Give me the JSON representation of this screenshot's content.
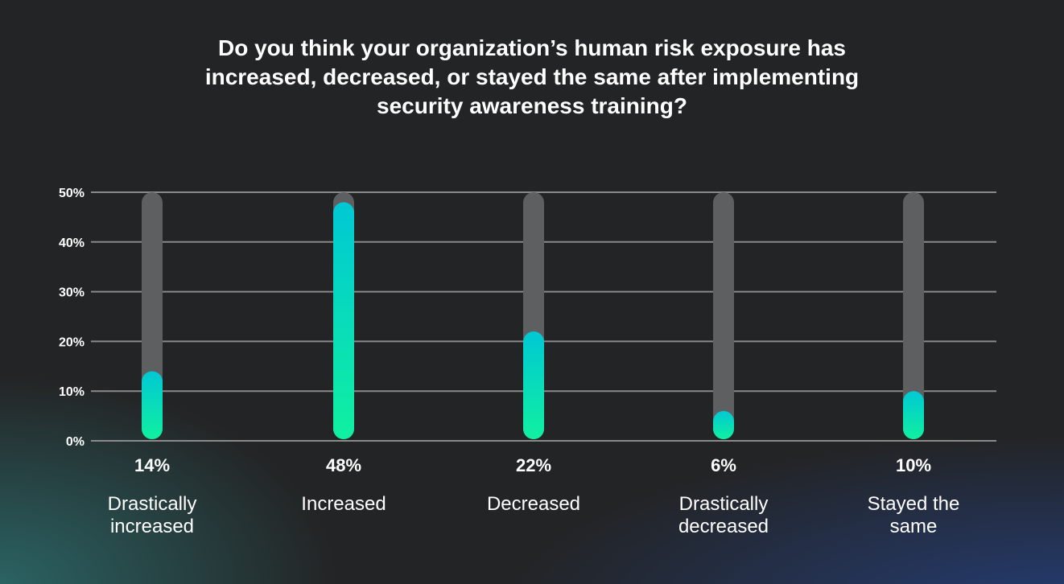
{
  "chart_data": {
    "type": "bar",
    "title_lines": [
      "Do you think your organization’s human risk exposure has",
      "increased, decreased, or stayed the same after implementing",
      "security awareness training?"
    ],
    "categories": [
      [
        "Drastically",
        "increased"
      ],
      [
        "Increased"
      ],
      [
        "Decreased"
      ],
      [
        "Drastically",
        "decreased"
      ],
      [
        "Stayed the",
        "same"
      ]
    ],
    "values": [
      14,
      48,
      22,
      6,
      10
    ],
    "value_labels": [
      "14%",
      "48%",
      "22%",
      "6%",
      "10%"
    ],
    "ylim": [
      0,
      50
    ],
    "yticks": [
      0,
      10,
      20,
      30,
      40,
      50
    ],
    "ytick_labels": [
      "0%",
      "10%",
      "20%",
      "30%",
      "40%",
      "50%"
    ],
    "grid": true,
    "colors": {
      "background": "#232425",
      "track": "#5e5f61",
      "bar_top": "#00c8d4",
      "bar_bottom": "#10f0a0",
      "grid": "#8a8a8a"
    }
  }
}
